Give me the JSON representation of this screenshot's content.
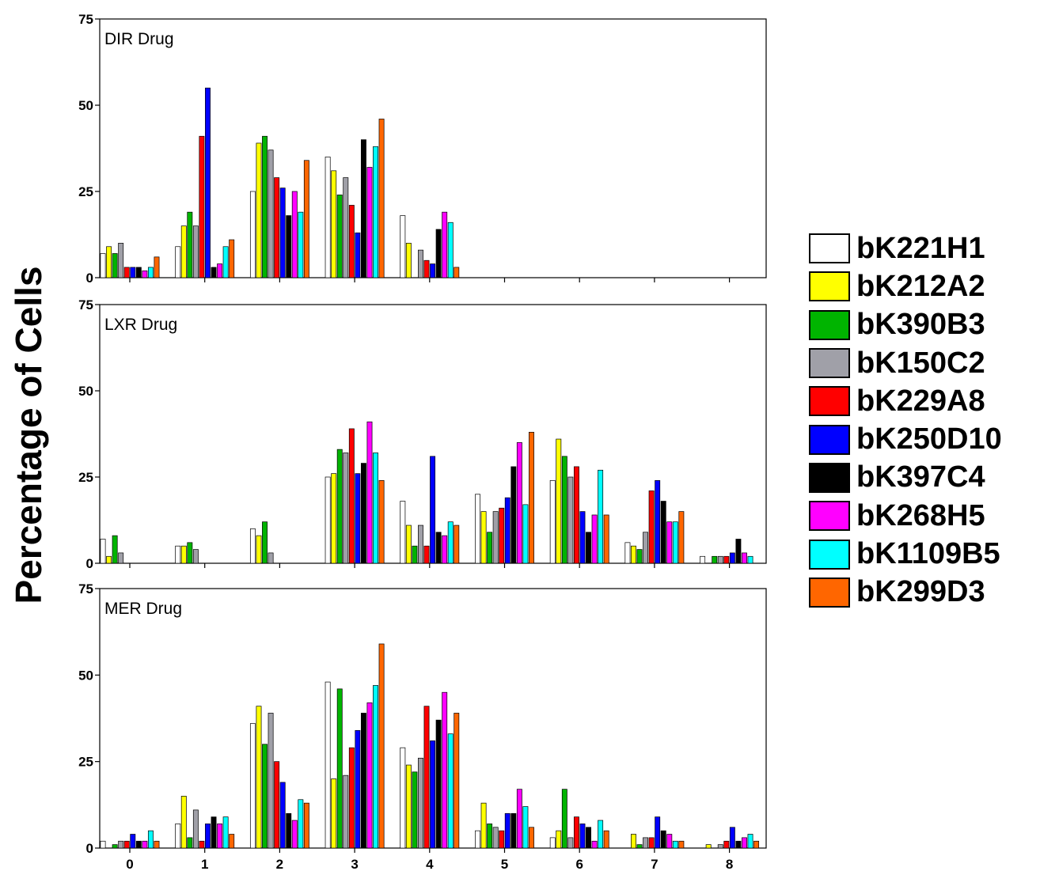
{
  "chart_data": {
    "type": "bar",
    "ylabel": "Percentage of Cells",
    "ylim": [
      0,
      75
    ],
    "yticks": [
      0,
      25,
      50,
      75
    ],
    "categories": [
      "0",
      "1",
      "2",
      "3",
      "4",
      "5",
      "6",
      "7",
      "8"
    ],
    "legend_position": "right",
    "series": [
      {
        "name": "bK221H1",
        "color": "#ffffff"
      },
      {
        "name": "bK212A2",
        "color": "#ffff00"
      },
      {
        "name": "bK390B3",
        "color": "#00b400"
      },
      {
        "name": "bK150C2",
        "color": "#a0a0a8"
      },
      {
        "name": "bK229A8",
        "color": "#ff0000"
      },
      {
        "name": "bK250D10",
        "color": "#0000ff"
      },
      {
        "name": "bK397C4",
        "color": "#000000"
      },
      {
        "name": "bK268H5",
        "color": "#ff00ff"
      },
      {
        "name": "bK1109B5",
        "color": "#00ffff"
      },
      {
        "name": "bK299D3",
        "color": "#ff6600"
      }
    ],
    "panels": [
      {
        "title": "DIR Drug",
        "values": [
          [
            7,
            9,
            7,
            10,
            3,
            3,
            3,
            2,
            3,
            6
          ],
          [
            9,
            15,
            19,
            15,
            41,
            55,
            3,
            4,
            9,
            11
          ],
          [
            25,
            39,
            41,
            37,
            29,
            26,
            18,
            25,
            19,
            34
          ],
          [
            35,
            31,
            24,
            29,
            21,
            13,
            40,
            32,
            38,
            46
          ],
          [
            18,
            10,
            0,
            8,
            5,
            4,
            14,
            19,
            16,
            3
          ],
          [
            0,
            0,
            0,
            0,
            0,
            0,
            0,
            0,
            0,
            0
          ],
          [
            0,
            0,
            0,
            0,
            0,
            0,
            0,
            0,
            0,
            0
          ],
          [
            0,
            0,
            0,
            0,
            0,
            0,
            0,
            0,
            0,
            0
          ],
          [
            0,
            0,
            0,
            0,
            0,
            0,
            0,
            0,
            0,
            0
          ]
        ]
      },
      {
        "title": "LXR Drug",
        "values": [
          [
            7,
            2,
            8,
            3,
            0,
            0,
            0,
            0,
            0,
            0
          ],
          [
            5,
            5,
            6,
            4,
            0,
            0,
            0,
            0,
            0,
            0
          ],
          [
            10,
            8,
            12,
            3,
            0,
            0,
            0,
            0,
            0,
            0
          ],
          [
            25,
            26,
            33,
            32,
            39,
            26,
            29,
            41,
            32,
            24
          ],
          [
            18,
            11,
            5,
            11,
            5,
            31,
            9,
            8,
            12,
            11
          ],
          [
            20,
            15,
            9,
            15,
            16,
            19,
            28,
            35,
            17,
            38
          ],
          [
            24,
            36,
            31,
            25,
            28,
            15,
            9,
            14,
            27,
            14
          ],
          [
            6,
            5,
            4,
            9,
            21,
            24,
            18,
            12,
            12,
            15
          ],
          [
            2,
            0,
            2,
            2,
            2,
            3,
            7,
            3,
            2,
            0
          ]
        ]
      },
      {
        "title": "MER Drug",
        "values": [
          [
            2,
            0,
            1,
            2,
            2,
            4,
            2,
            2,
            5,
            2
          ],
          [
            7,
            15,
            3,
            11,
            2,
            7,
            9,
            7,
            9,
            4
          ],
          [
            36,
            41,
            30,
            39,
            25,
            19,
            10,
            8,
            14,
            13
          ],
          [
            48,
            20,
            46,
            21,
            29,
            34,
            39,
            42,
            47,
            59
          ],
          [
            29,
            24,
            22,
            26,
            41,
            31,
            37,
            45,
            33,
            39
          ],
          [
            5,
            13,
            7,
            6,
            5,
            10,
            10,
            17,
            12,
            6
          ],
          [
            3,
            5,
            17,
            3,
            9,
            7,
            6,
            2,
            8,
            5
          ],
          [
            0,
            4,
            1,
            3,
            3,
            9,
            5,
            4,
            2,
            2
          ],
          [
            0,
            1,
            0,
            1,
            2,
            6,
            2,
            3,
            4,
            2
          ]
        ]
      }
    ]
  }
}
